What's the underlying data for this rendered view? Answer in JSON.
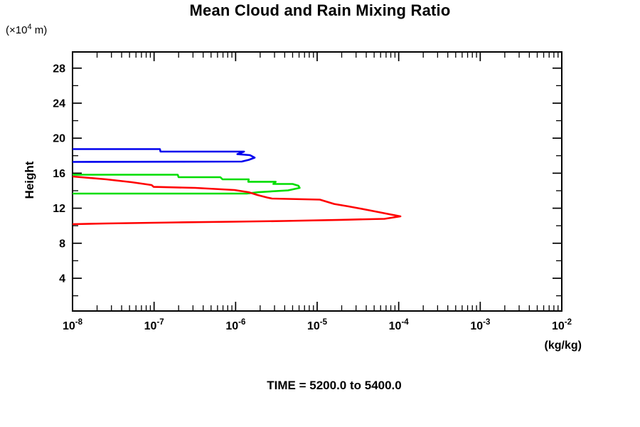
{
  "title": "Mean Cloud and Rain Mixing Ratio",
  "caption": "TIME = 5200.0 to 5400.0",
  "y_axis": {
    "unit_pre": "(×10",
    "unit_sup": "4",
    "unit_post": " m)",
    "label": "Height",
    "tick_labels": [
      "4",
      "8",
      "12",
      "16",
      "20",
      "24",
      "28"
    ],
    "tick_values": [
      4,
      8,
      12,
      16,
      20,
      24,
      28
    ],
    "minor_tick_values": [
      2,
      6,
      10,
      14,
      18,
      22,
      26
    ]
  },
  "x_axis": {
    "unit": "(kg/kg)",
    "tick_base": "10",
    "tick_exponents": [
      -8,
      -7,
      -6,
      -5,
      -4,
      -3,
      -2
    ]
  },
  "chart_data": {
    "type": "line",
    "title": "Mean Cloud and Rain Mixing Ratio",
    "annotation": "TIME = 5200.0 to 5400.0",
    "xlabel": "(kg/kg)",
    "ylabel": "Height (×10^4 m)",
    "x_scale": "log",
    "xlim": [
      1e-08,
      0.01
    ],
    "ylim": [
      0.26,
      29.85
    ],
    "grid": false,
    "legend": "none",
    "axis_color": "#000000",
    "series": [
      {
        "name": "blue-profile",
        "color": "#0000ee",
        "points": [
          [
            1e-08,
            18.75
          ],
          [
            1.18e-07,
            18.75
          ],
          [
            1.2e-07,
            18.47
          ],
          [
            1.27e-06,
            18.47
          ],
          [
            1.05e-06,
            18.18
          ],
          [
            1.5e-06,
            18.06
          ],
          [
            1.71e-06,
            17.78
          ],
          [
            1.45e-06,
            17.53
          ],
          [
            1.19e-06,
            17.33
          ],
          [
            1e-08,
            17.29
          ]
        ]
      },
      {
        "name": "green-profile",
        "color": "#00dd00",
        "points": [
          [
            1e-08,
            15.83
          ],
          [
            1.95e-07,
            15.83
          ],
          [
            2e-07,
            15.54
          ],
          [
            6.5e-07,
            15.54
          ],
          [
            6.9e-07,
            15.3
          ],
          [
            1.45e-06,
            15.3
          ],
          [
            1.43e-06,
            15.02
          ],
          [
            3.1e-06,
            15.02
          ],
          [
            2.9e-06,
            14.77
          ],
          [
            5e-06,
            14.77
          ],
          [
            5.9e-06,
            14.57
          ],
          [
            6.1e-06,
            14.32
          ],
          [
            4.4e-06,
            14.04
          ],
          [
            1.89e-06,
            13.83
          ],
          [
            1.37e-06,
            13.67
          ],
          [
            1e-08,
            13.67
          ]
        ]
      },
      {
        "name": "red-profile",
        "color": "#ff0000",
        "points": [
          [
            1e-08,
            15.62
          ],
          [
            2.6e-08,
            15.3
          ],
          [
            5.3e-08,
            14.97
          ],
          [
            9.3e-08,
            14.65
          ],
          [
            9.9e-08,
            14.44
          ],
          [
            3.2e-07,
            14.32
          ],
          [
            9.7e-07,
            14.08
          ],
          [
            1.45e-06,
            13.83
          ],
          [
            1.85e-06,
            13.51
          ],
          [
            2.45e-06,
            13.22
          ],
          [
            2.8e-06,
            13.1
          ],
          [
            1.08e-05,
            12.98
          ],
          [
            1.62e-05,
            12.49
          ],
          [
            2.42e-05,
            12.21
          ],
          [
            3.4e-05,
            11.96
          ],
          [
            5.1e-05,
            11.64
          ],
          [
            7.3e-05,
            11.36
          ],
          [
            0.000105,
            11.07
          ],
          [
            6.7e-05,
            10.79
          ],
          [
            1.98e-05,
            10.67
          ],
          [
            3.97e-06,
            10.54
          ],
          [
            9.7e-07,
            10.46
          ],
          [
            1.95e-07,
            10.38
          ],
          [
            2.6e-08,
            10.26
          ],
          [
            1e-08,
            10.18
          ]
        ]
      }
    ]
  }
}
